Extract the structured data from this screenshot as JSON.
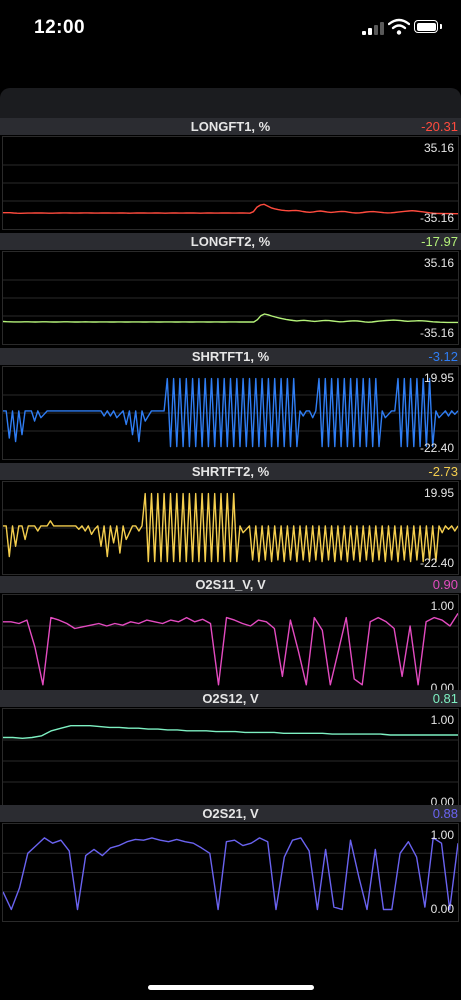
{
  "status_bar": {
    "time": "12:00"
  },
  "panels": [
    {
      "title": "LONGFT1, %",
      "value": "-20.31",
      "color": "#ff4b3e",
      "y_max": "35.16",
      "y_min": "-35.16",
      "range": [
        -35.16,
        35.16
      ],
      "series": [
        -29,
        -29,
        -29,
        -29.3,
        -29.5,
        -29.6,
        -29.5,
        -29.4,
        -29.4,
        -29.3,
        -29.2,
        -29.3,
        -29.4,
        -29.5,
        -29.5,
        -29.4,
        -29.3,
        -29.2,
        -29.2,
        -29.3,
        -29.4,
        -29.4,
        -29.3,
        -29.2,
        -29.2,
        -29.3,
        -29.4,
        -29.4,
        -29.3,
        -29.3,
        -29.3,
        -29.4,
        -29.4,
        -29.3,
        -29.3,
        -29.4,
        -29.5,
        -29.4,
        -29.3,
        -29.3,
        -29.3,
        -29.4,
        -29.4,
        -29.3,
        -29.3,
        -29.4,
        -29.5,
        -29.4,
        -29.3,
        -29.3,
        -29.4,
        -29.4,
        -29.3,
        -29.3,
        -29.3,
        -29.4,
        -29.5,
        -29.4,
        -29.3,
        -29.3,
        -29.4,
        -29.4,
        -29.3,
        -29.3,
        -29.3,
        -29.4,
        -29.4,
        -29.3,
        -29.3,
        -29.4,
        -29.5,
        -28,
        -23.5,
        -21.5,
        -20.8,
        -22.5,
        -24.2,
        -25.2,
        -26,
        -26.6,
        -27,
        -27.2,
        -27,
        -26.8,
        -27.2,
        -27.8,
        -28.3,
        -28.6,
        -28.2,
        -27.6,
        -27.3,
        -27.8,
        -28.4,
        -28.7,
        -28.4,
        -28,
        -27.7,
        -27.9,
        -28.5,
        -29,
        -29.3,
        -29.2,
        -28.8,
        -28.3,
        -28,
        -27.9,
        -28.2,
        -28.6,
        -29,
        -29.2,
        -29.1,
        -28.8,
        -28.4,
        -28,
        -27.6,
        -27.3,
        -27.1,
        -27.3,
        -27.7,
        -28.1,
        -28.6,
        -29.1,
        -29.5,
        -29.7,
        -29.8,
        -29.9,
        -29.9,
        -29.9,
        -30,
        -30
      ]
    },
    {
      "title": "LONGFT2, %",
      "value": "-17.97",
      "color": "#b5f27a",
      "y_max": "35.16",
      "y_min": "-35.16",
      "range": [
        -35.16,
        35.16
      ],
      "series": [
        -23,
        -23.1,
        -23.2,
        -23.3,
        -23.3,
        -23.3,
        -23.2,
        -23.2,
        -23.3,
        -23.4,
        -23.3,
        -23.2,
        -23.2,
        -23.3,
        -23.4,
        -23.4,
        -23.3,
        -23.2,
        -23.2,
        -23.3,
        -23.4,
        -23.4,
        -23.3,
        -23.2,
        -23.3,
        -23.4,
        -23.4,
        -23.3,
        -23.3,
        -23.3,
        -23.4,
        -23.4,
        -23.3,
        -23.3,
        -23.4,
        -23.4,
        -23.3,
        -23.3,
        -23.3,
        -23.4,
        -23.4,
        -23.3,
        -23.3,
        -23.4,
        -23.4,
        -23.3,
        -23.3,
        -23.3,
        -23.4,
        -23.4,
        -23.3,
        -23.3,
        -23.4,
        -23.4,
        -23.3,
        -23.3,
        -23.3,
        -23.4,
        -23.4,
        -23.3,
        -23.3,
        -23.4,
        -23.4,
        -23.3,
        -23.3,
        -23.3,
        -23.4,
        -23.4,
        -23.3,
        -23.4,
        -23.4,
        -21.2,
        -17.2,
        -15.6,
        -16.4,
        -17.6,
        -18.6,
        -19.4,
        -20.2,
        -20.9,
        -21.5,
        -22,
        -22.4,
        -22.1,
        -21.8,
        -22.2,
        -22.6,
        -22.9,
        -22.6,
        -22.2,
        -21.9,
        -22.1,
        -22.5,
        -22.9,
        -23.2,
        -23.1,
        -22.8,
        -22.5,
        -22.3,
        -22.5,
        -22.9,
        -23.3,
        -23.6,
        -23.4,
        -23,
        -22.6,
        -22.3,
        -22,
        -21.8,
        -21.6,
        -21.8,
        -22.1,
        -22.5,
        -22.8,
        -22.6,
        -22.4,
        -22.2,
        -22.3,
        -22.6,
        -22.9,
        -23.2,
        -23.4,
        -23.6,
        -23.7,
        -23.8,
        -23.8,
        -23.8,
        -23.8
      ]
    },
    {
      "title": "SHRTFT1, %",
      "value": "-3.12",
      "color": "#2f7df3",
      "y_max": "19.95",
      "y_min": "-22.40",
      "range": [
        -22.4,
        19.95
      ],
      "series": [
        0,
        0,
        -16,
        0,
        -18,
        0,
        -14,
        0,
        0,
        0,
        -6,
        0,
        -4,
        -2,
        0,
        0,
        0,
        0,
        0,
        0,
        0,
        0,
        0,
        0,
        0,
        0,
        0,
        0,
        0,
        0,
        0,
        0,
        -3,
        0,
        -3,
        0,
        -4,
        -2,
        0,
        -8,
        0,
        -14,
        0,
        -18,
        0,
        -6,
        -3,
        0,
        0,
        0,
        0,
        0,
        19,
        -21,
        19,
        -21,
        19,
        -21,
        19,
        -21,
        19,
        -21,
        19,
        -21,
        19,
        -21,
        19,
        -21,
        19,
        -21,
        19,
        -21,
        19,
        -21,
        19,
        -21,
        19,
        -21,
        19,
        -21,
        19,
        -21,
        19,
        -21,
        19,
        -21,
        19,
        -21,
        19,
        -21,
        19,
        -21,
        19,
        -21,
        0,
        -3,
        0,
        0,
        -4,
        0,
        19,
        -21,
        19,
        -21,
        19,
        -21,
        19,
        -21,
        19,
        -21,
        19,
        -21,
        19,
        -21,
        19,
        -21,
        19,
        -21,
        19,
        -21,
        0,
        -4,
        -2,
        0,
        0,
        19,
        -21,
        19,
        -21,
        19,
        -21,
        19,
        -21,
        19,
        -21,
        19,
        -21,
        0,
        -4,
        -2,
        0,
        -3,
        0,
        -2,
        0
      ]
    },
    {
      "title": "SHRTFT2, %",
      "value": "-2.73",
      "color": "#f4ce4e",
      "y_max": "19.95",
      "y_min": "-22.40",
      "range": [
        -22.4,
        19.95
      ],
      "series": [
        0,
        0,
        -18,
        0,
        -12,
        0,
        0,
        -8,
        0,
        0,
        0,
        -3,
        0,
        0,
        0,
        3,
        0,
        0,
        0,
        0,
        0,
        0,
        0,
        0,
        -2,
        0,
        -3,
        0,
        -5,
        -2,
        0,
        -12,
        0,
        -18,
        0,
        -10,
        0,
        -16,
        0,
        -8,
        -4,
        0,
        0,
        -3,
        0,
        19,
        -21,
        19,
        -21,
        19,
        -21,
        19,
        -21,
        19,
        -21,
        19,
        -21,
        19,
        -21,
        19,
        -21,
        19,
        -21,
        19,
        -21,
        19,
        -21,
        19,
        -21,
        19,
        -21,
        19,
        -21,
        19,
        -21,
        0,
        -4,
        -2,
        0,
        -20,
        0,
        -21,
        0,
        -20,
        0,
        -21,
        0,
        -20,
        0,
        -21,
        0,
        -20,
        0,
        -21,
        0,
        -20,
        0,
        -21,
        0,
        -20,
        0,
        -21,
        0,
        -20,
        0,
        -21,
        0,
        -20,
        0,
        -21,
        0,
        -20,
        0,
        -21,
        0,
        -20,
        0,
        -21,
        0,
        -20,
        0,
        -21,
        0,
        -20,
        0,
        -21,
        0,
        -20,
        0,
        -21,
        0,
        -20,
        0,
        -21,
        0,
        -20,
        0,
        -21,
        0,
        -4,
        0,
        -2,
        0,
        -3,
        0
      ]
    },
    {
      "title": "O2S11_V, V",
      "value": "0.90",
      "color": "#e34bc0",
      "y_max": "1.00",
      "y_min": "0.00",
      "range": [
        0,
        1
      ],
      "series": [
        0.8,
        0.8,
        0.78,
        0.82,
        0.5,
        0.05,
        0.85,
        0.82,
        0.78,
        0.72,
        0.74,
        0.76,
        0.78,
        0.75,
        0.78,
        0.76,
        0.8,
        0.78,
        0.82,
        0.8,
        0.78,
        0.82,
        0.8,
        0.85,
        0.8,
        0.83,
        0.78,
        0.05,
        0.85,
        0.82,
        0.78,
        0.75,
        0.82,
        0.8,
        0.72,
        0.15,
        0.82,
        0.45,
        0.05,
        0.85,
        0.7,
        0.05,
        0.45,
        0.85,
        0.12,
        0.05,
        0.8,
        0.85,
        0.8,
        0.72,
        0.15,
        0.75,
        0.05,
        0.8,
        0.85,
        0.82,
        0.75,
        0.9
      ]
    },
    {
      "title": "O2S12, V",
      "value": "0.81",
      "color": "#7ef0c2",
      "y_max": "1.00",
      "y_min": "0.00",
      "range": [
        0,
        1
      ],
      "series": [
        0.78,
        0.78,
        0.77,
        0.78,
        0.8,
        0.86,
        0.89,
        0.92,
        0.92,
        0.92,
        0.91,
        0.9,
        0.9,
        0.89,
        0.89,
        0.88,
        0.88,
        0.87,
        0.87,
        0.86,
        0.86,
        0.86,
        0.85,
        0.85,
        0.85,
        0.84,
        0.84,
        0.84,
        0.84,
        0.83,
        0.83,
        0.83,
        0.83,
        0.83,
        0.82,
        0.82,
        0.82,
        0.82,
        0.82,
        0.82,
        0.81,
        0.81,
        0.81,
        0.81,
        0.81,
        0.81,
        0.81,
        0.81
      ]
    },
    {
      "title": "O2S21, V",
      "value": "0.88",
      "color": "#6a63f0",
      "y_max": "1.00",
      "y_min": "0.00",
      "range": [
        0,
        1
      ],
      "series": [
        0.25,
        0.02,
        0.3,
        0.75,
        0.85,
        0.95,
        0.88,
        0.92,
        0.78,
        0.02,
        0.72,
        0.8,
        0.72,
        0.82,
        0.85,
        0.9,
        0.93,
        0.92,
        0.95,
        0.92,
        0.9,
        0.93,
        0.9,
        0.88,
        0.82,
        0.75,
        0.02,
        0.9,
        0.92,
        0.85,
        0.88,
        0.95,
        0.9,
        0.02,
        0.7,
        0.92,
        0.95,
        0.78,
        0.02,
        0.8,
        0.05,
        0.02,
        0.92,
        0.45,
        0.02,
        0.8,
        0.02,
        0.02,
        0.75,
        0.9,
        0.7,
        0.05,
        0.95,
        0.88,
        0.02,
        0.88
      ]
    }
  ]
}
